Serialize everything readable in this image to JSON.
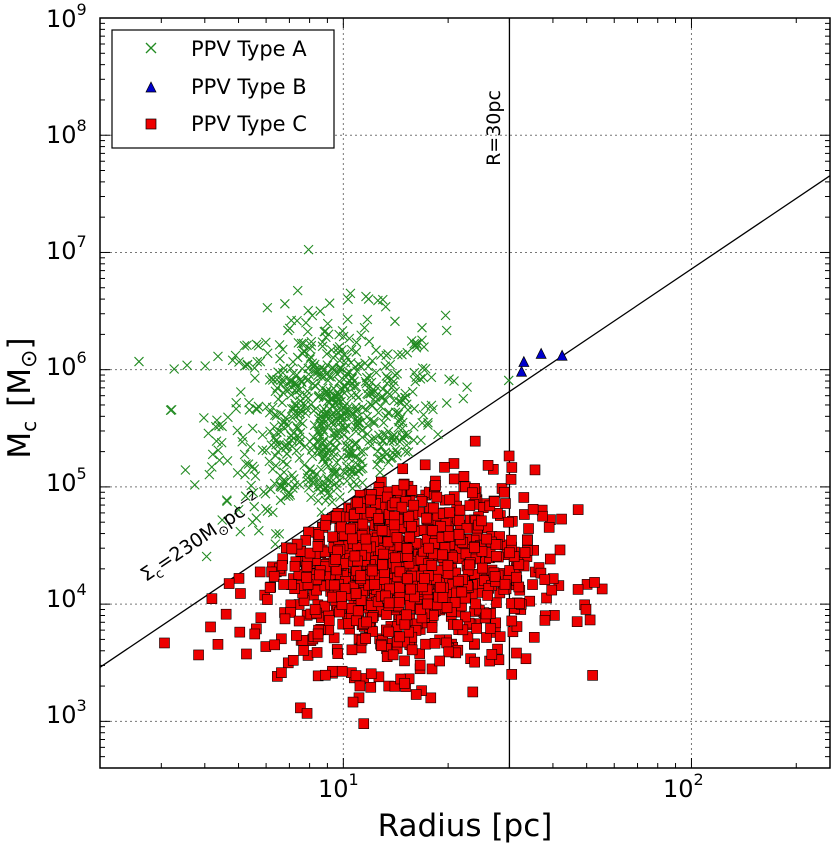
{
  "chart_data": {
    "type": "scatter",
    "xscale": "log",
    "yscale": "log",
    "xlim": [
      2.0,
      250
    ],
    "ylim": [
      400,
      1000000000
    ],
    "xlabel": "Radius  [pc]",
    "ylabel": "M",
    "ylabel_sub": "c",
    "ylabel_unit": "[M",
    "ylabel_unit_sym": "⊙",
    "ylabel_unit_close": "]",
    "x_ticks": [
      {
        "base": "10",
        "exp": "1"
      },
      {
        "base": "10",
        "exp": "2"
      }
    ],
    "y_ticks": [
      {
        "base": "10",
        "exp": "3"
      },
      {
        "base": "10",
        "exp": "4"
      },
      {
        "base": "10",
        "exp": "5"
      },
      {
        "base": "10",
        "exp": "6"
      },
      {
        "base": "10",
        "exp": "7"
      },
      {
        "base": "10",
        "exp": "8"
      },
      {
        "base": "10",
        "exp": "9"
      }
    ],
    "grid": true,
    "legend_position": "top-left",
    "series": [
      {
        "name": "PPV Type A",
        "marker": "x",
        "color": "#228b22",
        "n": 700,
        "center_log_r": 0.97,
        "center_log_m": 5.55,
        "spread_log_r": 0.16,
        "spread_log_m": 0.45
      },
      {
        "name": "PPV Type B",
        "marker": "triangle",
        "color": "#0000cc",
        "points": [
          [
            32.5,
            950000
          ],
          [
            33,
            1150000
          ],
          [
            37,
            1350000
          ],
          [
            42.5,
            1300000
          ]
        ]
      },
      {
        "name": "PPV Type C",
        "marker": "square",
        "color": "#ee0000",
        "n": 1050,
        "center_log_r": 1.15,
        "center_log_m": 4.3,
        "spread_log_r": 0.2,
        "spread_log_m": 0.42
      }
    ],
    "reference_lines": [
      {
        "type": "vertical",
        "x": 30,
        "label": "R=30pc"
      },
      {
        "type": "constant_surface_density",
        "sigma": 230,
        "label_main": "Σ",
        "label_sub": "c",
        "label_value": "=230M",
        "label_sym": "⊙",
        "label_unit": "pc",
        "label_exp": "−2"
      }
    ]
  },
  "colors": {
    "type_a": "#228b22",
    "type_b": "#0000cc",
    "type_c": "#ee0000",
    "edge": "#000000",
    "grid": "#777777"
  }
}
